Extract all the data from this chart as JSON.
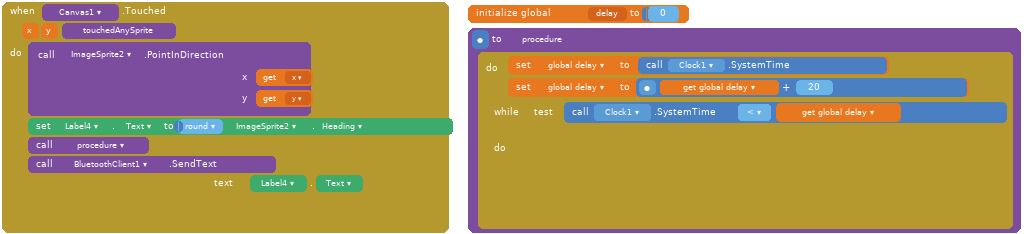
{
  "bg_color": "#ffffff",
  "colors": {
    "gold": "#b5992e",
    "purple": "#7c4d9f",
    "orange": "#e87820",
    "green": "#3dab6c",
    "blue_light": "#6ab4e8",
    "blue_dark": "#4a7fc1",
    "blue_med": "#5b9bd5",
    "orange_dark": "#d4621a",
    "orange_var": "#e06010"
  }
}
